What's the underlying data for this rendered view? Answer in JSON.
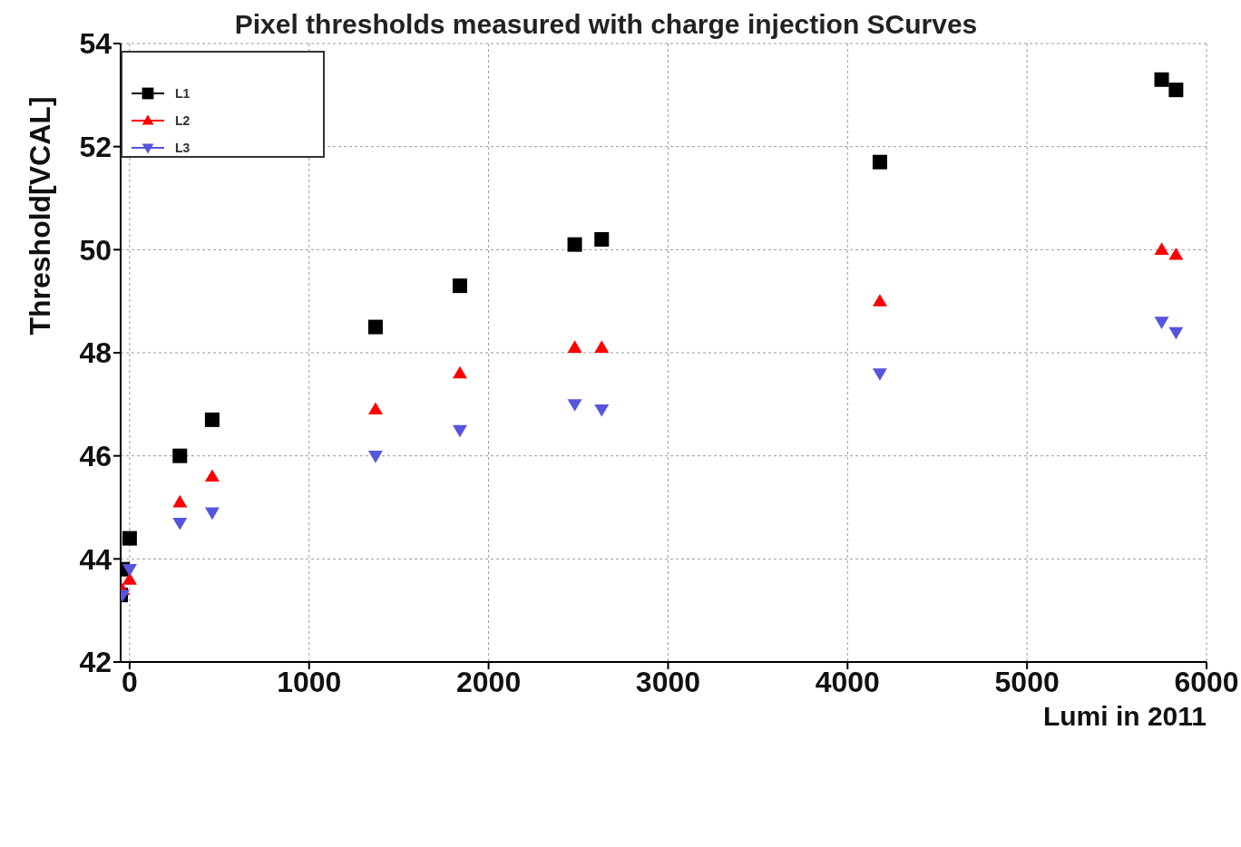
{
  "chart_data": {
    "type": "scatter",
    "title": "Pixel thresholds measured with charge injection SCurves",
    "xlabel": "Lumi in 2011",
    "ylabel": "Threshold[VCAL]",
    "xlim": [
      -50,
      6000
    ],
    "xticks": [
      0,
      1000,
      2000,
      3000,
      4000,
      5000,
      6000
    ],
    "ylim": [
      42,
      54
    ],
    "yticks": [
      42,
      44,
      46,
      48,
      50,
      52,
      54
    ],
    "grid": true,
    "legend": "top left",
    "series": [
      {
        "name": "L1",
        "color": "#000000",
        "marker": "square",
        "x": [
          -50,
          -40,
          0,
          280,
          460,
          1370,
          1840,
          2480,
          2630,
          4180,
          5750,
          5830
        ],
        "values": [
          43.3,
          43.8,
          44.4,
          46.0,
          46.7,
          48.5,
          49.3,
          50.1,
          50.2,
          51.7,
          53.3,
          53.1
        ]
      },
      {
        "name": "L2",
        "color": "#ff0000",
        "marker": "triangle",
        "x": [
          -40,
          0,
          280,
          460,
          1370,
          1840,
          2480,
          2630,
          4180,
          5750,
          5830
        ],
        "values": [
          43.4,
          43.6,
          45.1,
          45.6,
          46.9,
          47.6,
          48.1,
          48.1,
          49.0,
          50.0,
          49.9
        ]
      },
      {
        "name": "L3",
        "color": "#5555dd",
        "marker": "triangle-down",
        "x": [
          -40,
          0,
          280,
          460,
          1370,
          1840,
          2480,
          2630,
          4180,
          5750,
          5830
        ],
        "values": [
          43.3,
          43.8,
          44.7,
          44.9,
          46.0,
          46.5,
          47.0,
          46.9,
          47.6,
          48.6,
          48.4
        ]
      }
    ]
  }
}
